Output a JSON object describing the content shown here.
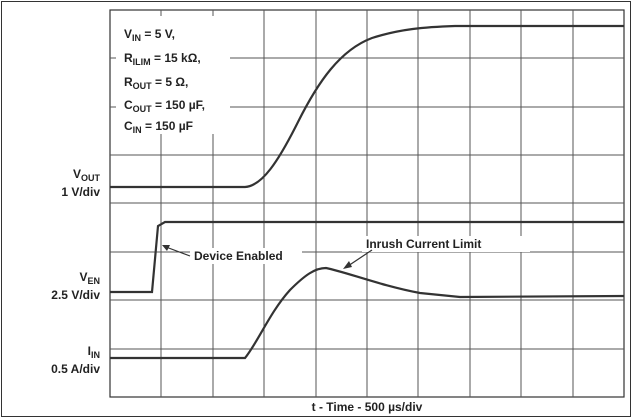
{
  "conditions": [
    {
      "symbol": "V",
      "sub": "IN",
      "rest": " = 5 V,"
    },
    {
      "symbol": "R",
      "sub": "ILIM",
      "rest": " = 15 kΩ,"
    },
    {
      "symbol": "R",
      "sub": "OUT",
      "rest": " = 5 Ω,"
    },
    {
      "symbol": "C",
      "sub": "OUT",
      "rest": " = 150 µF,"
    },
    {
      "symbol": "C",
      "sub": "IN",
      "rest": " = 150 µF"
    }
  ],
  "channels": [
    {
      "symbol": "V",
      "sub": "OUT",
      "scale": "1 V/div"
    },
    {
      "symbol": "V",
      "sub": "EN",
      "scale": "2.5 V/div"
    },
    {
      "symbol": "I",
      "sub": "IN",
      "scale": "0.5 A/div"
    }
  ],
  "annotations": [
    "Device Enabled",
    "Inrush Current Limit"
  ],
  "x_label": "t - Time - 500 µs/div"
}
